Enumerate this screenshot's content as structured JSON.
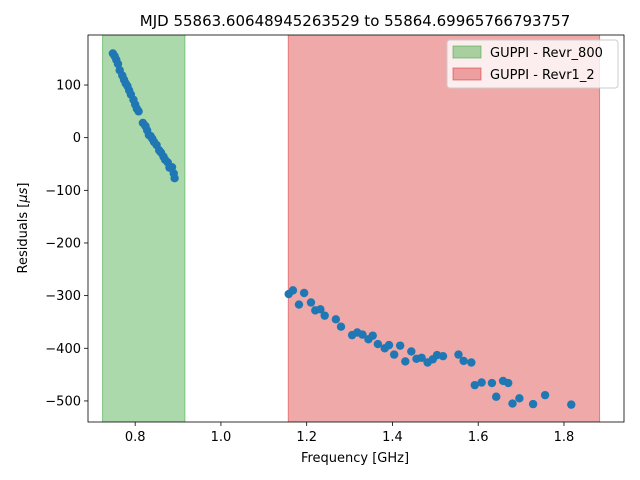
{
  "chart_data": {
    "type": "scatter",
    "title": "MJD 55863.60648945263529 to 55864.69965766793757",
    "xlabel": "Frequency [GHz]",
    "ylabel": "Residuals [$\\mu s$]",
    "xlim": [
      0.69,
      1.94
    ],
    "ylim": [
      -540,
      195
    ],
    "xticks": [
      0.8,
      1.0,
      1.2,
      1.4,
      1.6,
      1.8
    ],
    "xtick_labels": [
      "0.8",
      "1.0",
      "1.2",
      "1.4",
      "1.6",
      "1.8"
    ],
    "yticks": [
      100,
      0,
      -100,
      -200,
      -300,
      -400,
      -500
    ],
    "ytick_labels": [
      "100",
      "0",
      "−100",
      "−200",
      "−300",
      "−400",
      "−500"
    ],
    "grid": false,
    "legend_position": "top-right",
    "bands": [
      {
        "name": "GUPPI - Revr_800",
        "x_range": [
          0.724,
          0.916
        ],
        "color": "#2ca02c"
      },
      {
        "name": "GUPPI - Revr1_2",
        "x_range": [
          1.157,
          1.883
        ],
        "color": "#d62728"
      }
    ],
    "marker_color": "#1f77b4",
    "points": [
      [
        0.748,
        160
      ],
      [
        0.752,
        155
      ],
      [
        0.756,
        148
      ],
      [
        0.76,
        140
      ],
      [
        0.764,
        128
      ],
      [
        0.77,
        118
      ],
      [
        0.774,
        110
      ],
      [
        0.778,
        103
      ],
      [
        0.782,
        98
      ],
      [
        0.786,
        90
      ],
      [
        0.79,
        82
      ],
      [
        0.796,
        72
      ],
      [
        0.8,
        63
      ],
      [
        0.804,
        55
      ],
      [
        0.808,
        50
      ],
      [
        0.818,
        28
      ],
      [
        0.824,
        22
      ],
      [
        0.828,
        14
      ],
      [
        0.832,
        5
      ],
      [
        0.836,
        3
      ],
      [
        0.84,
        -2
      ],
      [
        0.844,
        -8
      ],
      [
        0.85,
        -14
      ],
      [
        0.856,
        -24
      ],
      [
        0.86,
        -28
      ],
      [
        0.866,
        -36
      ],
      [
        0.87,
        -42
      ],
      [
        0.876,
        -47
      ],
      [
        0.88,
        -57
      ],
      [
        0.886,
        -56
      ],
      [
        0.89,
        -68
      ],
      [
        0.892,
        -77
      ],
      [
        1.158,
        -297
      ],
      [
        1.168,
        -290
      ],
      [
        1.182,
        -317
      ],
      [
        1.194,
        -295
      ],
      [
        1.21,
        -313
      ],
      [
        1.22,
        -328
      ],
      [
        1.232,
        -326
      ],
      [
        1.242,
        -338
      ],
      [
        1.268,
        -345
      ],
      [
        1.28,
        -359
      ],
      [
        1.306,
        -375
      ],
      [
        1.318,
        -370
      ],
      [
        1.33,
        -374
      ],
      [
        1.344,
        -383
      ],
      [
        1.354,
        -376
      ],
      [
        1.366,
        -392
      ],
      [
        1.382,
        -400
      ],
      [
        1.392,
        -394
      ],
      [
        1.404,
        -412
      ],
      [
        1.418,
        -395
      ],
      [
        1.43,
        -425
      ],
      [
        1.444,
        -406
      ],
      [
        1.456,
        -420
      ],
      [
        1.468,
        -418
      ],
      [
        1.482,
        -427
      ],
      [
        1.494,
        -421
      ],
      [
        1.504,
        -413
      ],
      [
        1.518,
        -415
      ],
      [
        1.554,
        -412
      ],
      [
        1.566,
        -424
      ],
      [
        1.584,
        -427
      ],
      [
        1.592,
        -470
      ],
      [
        1.608,
        -465
      ],
      [
        1.632,
        -466
      ],
      [
        1.642,
        -492
      ],
      [
        1.658,
        -462
      ],
      [
        1.67,
        -466
      ],
      [
        1.68,
        -505
      ],
      [
        1.696,
        -495
      ],
      [
        1.728,
        -506
      ],
      [
        1.756,
        -489
      ],
      [
        1.817,
        -507
      ]
    ]
  }
}
